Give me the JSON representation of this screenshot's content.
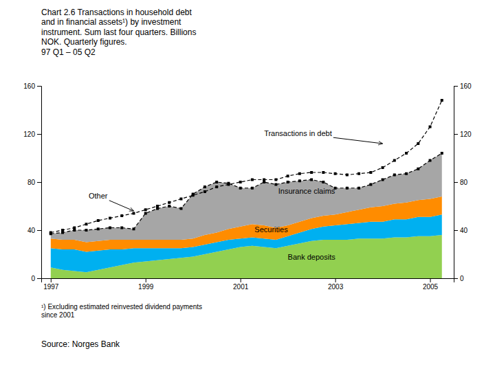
{
  "chart_data": {
    "type": "area",
    "stacked": true,
    "title": "Chart 2.6 Transactions in household debt\nand in financial assets¹) by investment\ninstrument. Sum last four quarters. Billions\nNOK. Quarterly figures.\n97 Q1 – 05 Q2",
    "footnote": "¹) Excluding estimated reinvested dividend payments\nsince 2001",
    "source": "Source: Norges Bank",
    "x": [
      1997.0,
      1997.25,
      1997.5,
      1997.75,
      1998.0,
      1998.25,
      1998.5,
      1998.75,
      1999.0,
      1999.25,
      1999.5,
      1999.75,
      2000.0,
      2000.25,
      2000.5,
      2000.75,
      2001.0,
      2001.25,
      2001.5,
      2001.75,
      2002.0,
      2002.25,
      2002.5,
      2002.75,
      2003.0,
      2003.25,
      2003.5,
      2003.75,
      2004.0,
      2004.25,
      2004.5,
      2004.75,
      2005.0,
      2005.25
    ],
    "xlim": [
      1996.8,
      2005.5
    ],
    "xticks": [
      1997,
      1999,
      2001,
      2003,
      2005
    ],
    "ylim": [
      0,
      160
    ],
    "yticks": [
      0,
      40,
      80,
      120,
      160
    ],
    "series": [
      {
        "type": "area",
        "color": "#92d050",
        "values": [
          9,
          7,
          6,
          5,
          7,
          9,
          11,
          13,
          14,
          15,
          16,
          17,
          18,
          20,
          22,
          24,
          26,
          27,
          26,
          25,
          27,
          29,
          31,
          32,
          32,
          32,
          33,
          33,
          33,
          34,
          34,
          35,
          35,
          36
        ]
      },
      {
        "type": "area",
        "color": "#00b0f0",
        "values": [
          16,
          17,
          18,
          17,
          16,
          15,
          13,
          12,
          11,
          10,
          9,
          8,
          8,
          8,
          8,
          8,
          7,
          7,
          7,
          7,
          8,
          9,
          10,
          11,
          12,
          13,
          13,
          14,
          14,
          15,
          15,
          16,
          16,
          17
        ]
      },
      {
        "type": "area",
        "color": "#ff8c00",
        "values": [
          8,
          8,
          8,
          8,
          8,
          8,
          8,
          7,
          7,
          7,
          7,
          7,
          7,
          8,
          8,
          9,
          10,
          11,
          11,
          10,
          9,
          9,
          9,
          9,
          9,
          10,
          11,
          12,
          13,
          13,
          14,
          14,
          15,
          15
        ]
      },
      {
        "type": "area",
        "color": "#a6a6a6",
        "values": [
          4,
          6,
          8,
          10,
          10,
          10,
          10,
          9,
          22,
          26,
          28,
          26,
          37,
          40,
          42,
          38,
          32,
          30,
          36,
          36,
          36,
          34,
          32,
          28,
          22,
          20,
          18,
          19,
          22,
          24,
          24,
          26,
          32,
          36
        ]
      },
      {
        "type": "line",
        "color": "#000000",
        "line_style": "dashed",
        "marker": "square",
        "values": [
          37,
          38,
          40,
          40,
          41,
          42,
          42,
          41,
          54,
          58,
          60,
          58,
          70,
          76,
          80,
          79,
          75,
          75,
          80,
          78,
          80,
          81,
          82,
          80,
          75,
          75,
          75,
          78,
          82,
          86,
          87,
          91,
          98,
          104
        ]
      },
      {
        "type": "line",
        "color": "#000000",
        "line_style": "dashed",
        "marker": "square",
        "values": [
          38,
          40,
          42,
          45,
          48,
          50,
          52,
          54,
          57,
          60,
          63,
          66,
          69,
          72,
          76,
          78,
          80,
          82,
          82,
          82,
          85,
          87,
          88,
          88,
          87,
          86,
          87,
          88,
          92,
          98,
          104,
          112,
          126,
          148
        ]
      }
    ],
    "annotations": [
      {
        "text": "Transactions in debt",
        "x": 2001.5,
        "y": 120,
        "arrow_x": 2004.0,
        "arrow_y": 112
      },
      {
        "text": "Other",
        "x": 1997.8,
        "y": 68,
        "arrow_x": 1998.75,
        "arrow_y": 56
      },
      {
        "text": "Insurance claims",
        "x": 2001.8,
        "y": 72
      },
      {
        "text": "Securities",
        "x": 2001.3,
        "y": 40
      },
      {
        "text": "Bank deposits",
        "x": 2002.0,
        "y": 17
      }
    ]
  }
}
